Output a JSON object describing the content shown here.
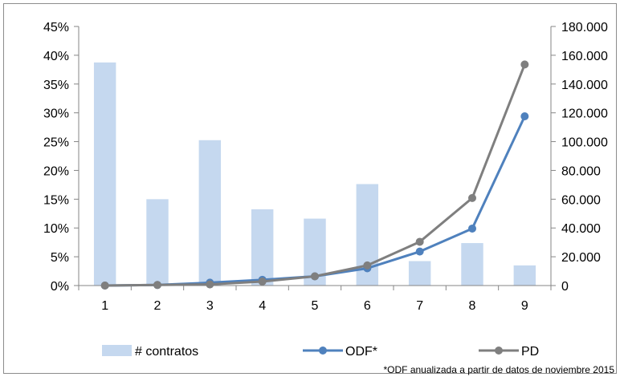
{
  "chart_data": {
    "type": "bar",
    "categories": [
      "1",
      "2",
      "3",
      "4",
      "5",
      "6",
      "7",
      "8",
      "9"
    ],
    "series": [
      {
        "name": "# contratos",
        "type": "bar",
        "axis": "right",
        "values": [
          155000,
          60000,
          101000,
          53000,
          46500,
          70500,
          17000,
          29500,
          14000
        ],
        "color": "#c5d8ef"
      },
      {
        "name": "ODF*",
        "type": "line",
        "axis": "left",
        "values": [
          0.0,
          0.1,
          0.5,
          1.0,
          1.6,
          3.0,
          5.9,
          9.9,
          29.4
        ],
        "color": "#4f81bd"
      },
      {
        "name": "PD",
        "type": "line",
        "axis": "left",
        "values": [
          0.0,
          0.1,
          0.2,
          0.7,
          1.6,
          3.5,
          7.6,
          15.2,
          38.4
        ],
        "color": "#7f7f7f"
      }
    ],
    "left_axis": {
      "ylim": [
        0,
        45
      ],
      "ticks": [
        "0%",
        "5%",
        "10%",
        "15%",
        "20%",
        "25%",
        "30%",
        "35%",
        "40%",
        "45%"
      ]
    },
    "right_axis": {
      "ylim": [
        0,
        180000
      ],
      "ticks": [
        "0",
        "20.000",
        "40.000",
        "60.000",
        "80.000",
        "100.000",
        "120.000",
        "140.000",
        "160.000",
        "180.000"
      ]
    },
    "legend_position": "bottom",
    "grid": false,
    "footnote": "*ODF anualizada a partir de datos de noviembre 2015"
  }
}
